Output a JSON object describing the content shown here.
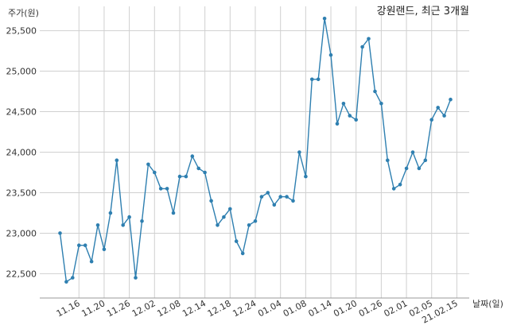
{
  "chart_data": {
    "type": "line",
    "title": "강원랜드, 최근 3개월",
    "ylabel": "주가(원)",
    "xlabel": "날짜(일)",
    "ylim": [
      22200,
      25800
    ],
    "grid": true,
    "yticks": [
      22500,
      23000,
      23500,
      24000,
      24500,
      25000,
      25500
    ],
    "ytick_labels": [
      "22,500",
      "23,000",
      "23,500",
      "24,000",
      "24,500",
      "25,000",
      "25,500"
    ],
    "xtick_labels": [
      "11.16",
      "11.20",
      "11.26",
      "12.02",
      "12.08",
      "12.14",
      "12.18",
      "12.24",
      "01.04",
      "01.08",
      "01.14",
      "01.20",
      "01.26",
      "02.01",
      "02.05",
      "21.02.15"
    ],
    "xtick_positions": [
      3,
      7,
      11,
      15,
      19,
      23,
      27,
      31,
      35,
      39,
      43,
      47,
      51,
      55,
      59,
      63
    ],
    "series": [
      {
        "color": "#2e7fb0",
        "values": [
          23000,
          22400,
          22450,
          22850,
          22850,
          22650,
          23100,
          22800,
          23250,
          23900,
          23100,
          23200,
          22450,
          23150,
          23850,
          23750,
          23550,
          23550,
          23250,
          23700,
          23700,
          23950,
          23800,
          23750,
          23400,
          23100,
          23200,
          23300,
          22900,
          22750,
          23100,
          23150,
          23450,
          23500,
          23350,
          23450,
          23450,
          23400,
          24000,
          23700,
          24900,
          24900,
          25650,
          25200,
          24350,
          24600,
          24450,
          24400,
          25300,
          25400,
          24750,
          24600,
          23900,
          23550,
          23600,
          23800,
          24000,
          23800,
          23900,
          24400,
          24550,
          24450,
          24650
        ]
      }
    ]
  }
}
